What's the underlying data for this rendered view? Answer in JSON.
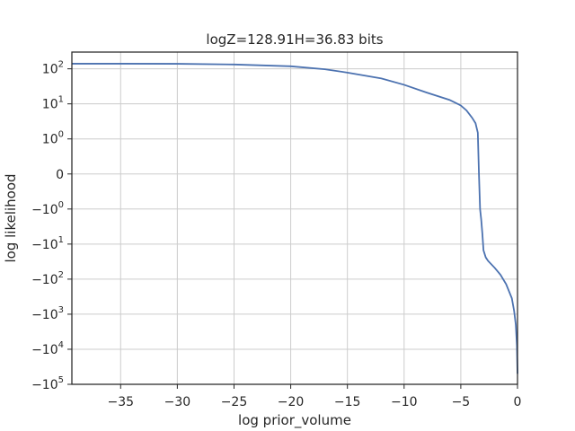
{
  "chart_data": {
    "type": "line",
    "title": "logZ=128.91H=36.83 bits",
    "xlabel": "log prior_volume",
    "ylabel": "log likelihood",
    "xlim": [
      -39.3,
      0
    ],
    "ylim": [
      -100000,
      300
    ],
    "yscale": "symlog",
    "symlog_linthresh": 1,
    "grid": true,
    "x_ticks": [
      {
        "value": -35,
        "label": "−35"
      },
      {
        "value": -30,
        "label": "−30"
      },
      {
        "value": -25,
        "label": "−25"
      },
      {
        "value": -20,
        "label": "−20"
      },
      {
        "value": -15,
        "label": "−15"
      },
      {
        "value": -10,
        "label": "−10"
      },
      {
        "value": -5,
        "label": "−5"
      },
      {
        "value": 0,
        "label": "0"
      }
    ],
    "y_ticks": [
      {
        "value": 100,
        "base": "10",
        "exp": "2"
      },
      {
        "value": 10,
        "base": "10",
        "exp": "1"
      },
      {
        "value": 1,
        "base": "10",
        "exp": "0"
      },
      {
        "value": 0,
        "base": "0",
        "exp": ""
      },
      {
        "value": -1,
        "base": "−10",
        "exp": "0"
      },
      {
        "value": -10,
        "base": "−10",
        "exp": "1"
      },
      {
        "value": -100,
        "base": "−10",
        "exp": "2"
      },
      {
        "value": -1000,
        "base": "−10",
        "exp": "3"
      },
      {
        "value": -10000,
        "base": "−10",
        "exp": "4"
      },
      {
        "value": -100000,
        "base": "−10",
        "exp": "5"
      }
    ],
    "series": [
      {
        "color": "#4c72b0",
        "x": [
          -39.3,
          -35,
          -30,
          -25,
          -20,
          -17,
          -15,
          -12,
          -10,
          -8,
          -6,
          -5,
          -4.5,
          -4,
          -3.7,
          -3.5,
          -3.4,
          -3.3,
          -3.2,
          -3.1,
          -3.0,
          -2.8,
          -2.6,
          -2.0,
          -1.5,
          -1.0,
          -0.5,
          -0.3,
          -0.15,
          -0.05,
          0
        ],
        "y": [
          140,
          140,
          139,
          133,
          118,
          97,
          78,
          53,
          35,
          21,
          13,
          9,
          6.5,
          4,
          2.8,
          1.5,
          0,
          -1.0,
          -2,
          -5,
          -15,
          -24,
          -30,
          -48,
          -75,
          -140,
          -350,
          -800,
          -2000,
          -8000,
          -50000
        ]
      }
    ]
  }
}
